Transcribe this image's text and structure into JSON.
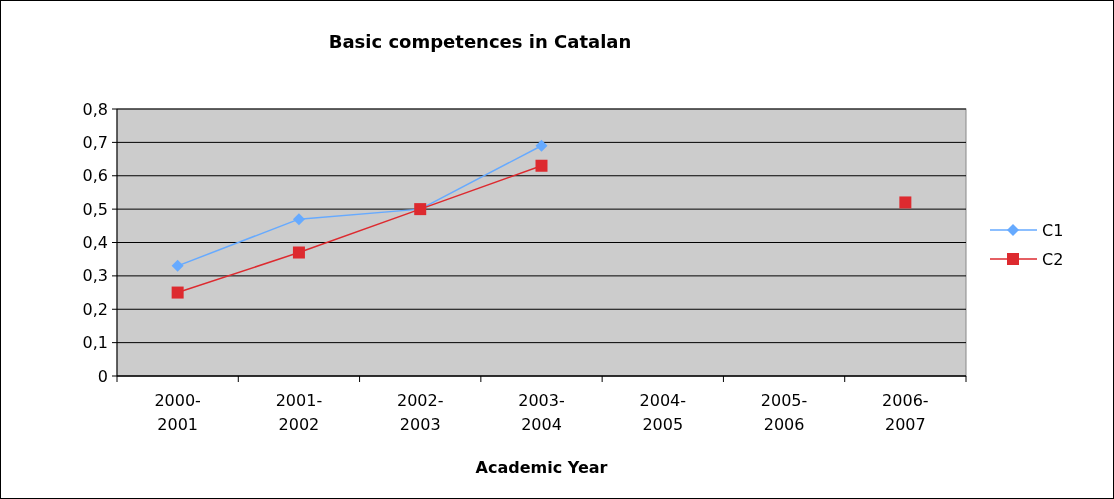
{
  "chart_data": {
    "type": "line",
    "title": "Basic competences in Catalan",
    "xlabel": "Academic Year",
    "categories": [
      "2000-2001",
      "2001-2002",
      "2002-2003",
      "2003-2004",
      "2004-2005",
      "2005-2006",
      "2006-2007"
    ],
    "series": [
      {
        "name": "C1",
        "color": "#66aaff",
        "marker": "diamond",
        "values": [
          0.33,
          0.47,
          0.5,
          0.69,
          null,
          null,
          null
        ]
      },
      {
        "name": "C2",
        "color": "#dd2a2f",
        "marker": "square",
        "values": [
          0.25,
          0.37,
          0.5,
          0.63,
          null,
          null,
          0.52
        ]
      }
    ],
    "ylim": [
      0,
      0.8
    ],
    "yticks": [
      {
        "value": 0,
        "label": "0"
      },
      {
        "value": 0.1,
        "label": "0,1"
      },
      {
        "value": 0.2,
        "label": "0,2"
      },
      {
        "value": 0.3,
        "label": "0,3"
      },
      {
        "value": 0.4,
        "label": "0,4"
      },
      {
        "value": 0.5,
        "label": "0,5"
      },
      {
        "value": 0.6,
        "label": "0,6"
      },
      {
        "value": 0.7,
        "label": "0,7"
      },
      {
        "value": 0.8,
        "label": "0,8"
      }
    ],
    "grid": "y",
    "legend": "right"
  }
}
